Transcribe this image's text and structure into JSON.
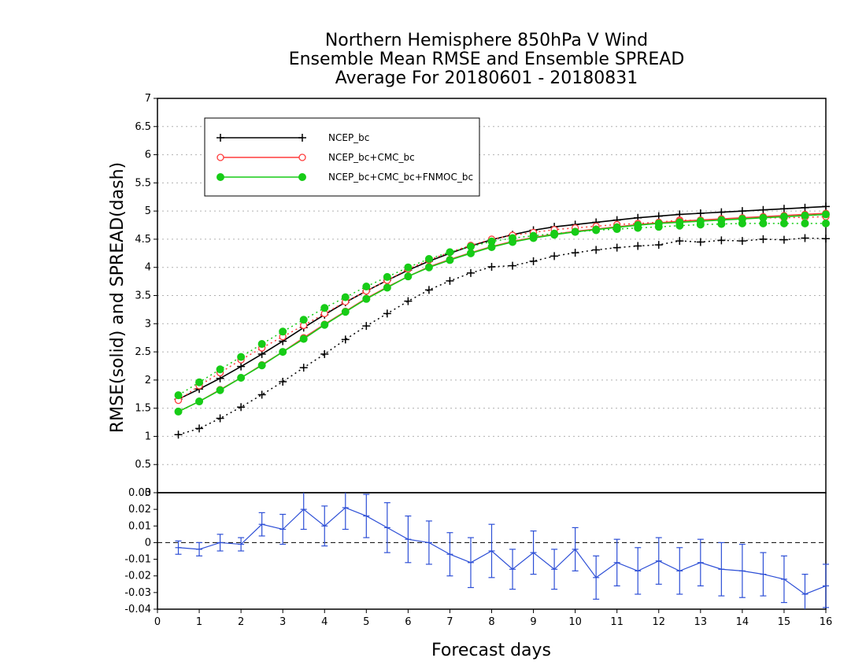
{
  "chart_data": [
    {
      "type": "line",
      "title": [
        "Northern Hemisphere 850hPa V Wind",
        "Ensemble Mean RMSE and Ensemble SPREAD",
        "Average For 20180601 - 20180831"
      ],
      "xlabel": "Forecast days",
      "ylabel": "RMSE(solid) and SPREAD(dash)",
      "xlim": [
        0,
        16
      ],
      "ylim": [
        0,
        7
      ],
      "x_ticks": [
        "0",
        "1",
        "2",
        "3",
        "4",
        "5",
        "6",
        "7",
        "8",
        "9",
        "10",
        "11",
        "12",
        "13",
        "14",
        "15",
        "16"
      ],
      "y_ticks": [
        "0",
        "0.5",
        "1",
        "1.5",
        "2",
        "2.5",
        "3",
        "3.5",
        "4",
        "4.5",
        "5",
        "5.5",
        "6",
        "6.5",
        "7"
      ],
      "grid": true,
      "legend_position": "top-left",
      "x": [
        0.5,
        1,
        1.5,
        2,
        2.5,
        3,
        3.5,
        4,
        4.5,
        5,
        5.5,
        6,
        6.5,
        7,
        7.5,
        8,
        8.5,
        9,
        9.5,
        10,
        10.5,
        11,
        11.5,
        12,
        12.5,
        13,
        13.5,
        14,
        14.5,
        15,
        15.5,
        16
      ],
      "series": [
        {
          "name": "NCEP_bc",
          "color": "#000000",
          "marker": "plus",
          "rmse": [
            1.66,
            1.84,
            2.03,
            2.24,
            2.46,
            2.69,
            2.93,
            3.16,
            3.38,
            3.58,
            3.77,
            3.95,
            4.11,
            4.25,
            4.38,
            4.49,
            4.58,
            4.66,
            4.72,
            4.76,
            4.8,
            4.84,
            4.88,
            4.91,
            4.94,
            4.96,
            4.98,
            5.0,
            5.02,
            5.04,
            5.06,
            5.08
          ],
          "spread": [
            1.03,
            1.14,
            1.32,
            1.52,
            1.74,
            1.97,
            2.22,
            2.46,
            2.72,
            2.96,
            3.18,
            3.4,
            3.6,
            3.76,
            3.9,
            4.01,
            4.03,
            4.11,
            4.2,
            4.26,
            4.31,
            4.35,
            4.38,
            4.4,
            4.47,
            4.45,
            4.48,
            4.47,
            4.5,
            4.49,
            4.52,
            4.51
          ]
        },
        {
          "name": "NCEP_bc+CMC_bc",
          "color": "#ff3c3c",
          "marker": "open-circle",
          "rmse": [
            1.44,
            1.62,
            1.83,
            2.04,
            2.27,
            2.5,
            2.75,
            2.99,
            3.22,
            3.45,
            3.65,
            3.84,
            4.01,
            4.14,
            4.26,
            4.37,
            4.46,
            4.53,
            4.59,
            4.64,
            4.68,
            4.72,
            4.76,
            4.79,
            4.82,
            4.84,
            4.86,
            4.88,
            4.9,
            4.92,
            4.94,
            4.96
          ],
          "spread": [
            1.64,
            1.9,
            2.13,
            2.36,
            2.57,
            2.77,
            2.97,
            3.18,
            3.39,
            3.58,
            3.77,
            3.97,
            4.13,
            4.27,
            4.39,
            4.5,
            4.57,
            4.62,
            4.67,
            4.7,
            4.73,
            4.76,
            4.78,
            4.8,
            4.84,
            4.83,
            4.86,
            4.87,
            4.88,
            4.88,
            4.89,
            4.9
          ]
        },
        {
          "name": "NCEP_bc+CMC_bc+FNMOC_bc",
          "color": "#17cc17",
          "marker": "filled-circle",
          "rmse": [
            1.44,
            1.62,
            1.82,
            2.04,
            2.26,
            2.5,
            2.73,
            2.98,
            3.21,
            3.44,
            3.64,
            3.84,
            4.0,
            4.13,
            4.25,
            4.36,
            4.45,
            4.52,
            4.58,
            4.63,
            4.67,
            4.71,
            4.75,
            4.78,
            4.8,
            4.82,
            4.84,
            4.86,
            4.88,
            4.9,
            4.92,
            4.94
          ],
          "spread": [
            1.73,
            1.96,
            2.19,
            2.41,
            2.64,
            2.86,
            3.07,
            3.28,
            3.47,
            3.66,
            3.83,
            4.0,
            4.15,
            4.27,
            4.37,
            4.46,
            4.52,
            4.56,
            4.6,
            4.63,
            4.66,
            4.68,
            4.7,
            4.72,
            4.74,
            4.76,
            4.77,
            4.78,
            4.78,
            4.78,
            4.78,
            4.78
          ]
        }
      ]
    },
    {
      "type": "line",
      "xlabel": "Forecast days",
      "ylim": [
        -0.04,
        0.03
      ],
      "y_ticks": [
        "0.03",
        "0.02",
        "0.01",
        "0",
        "-0.01",
        "-0.02",
        "-0.03",
        "-0.04"
      ],
      "color": "#2d4fd6",
      "error_bars": true,
      "x": [
        0.5,
        1,
        1.5,
        2,
        2.5,
        3,
        3.5,
        4,
        4.5,
        5,
        5.5,
        6,
        6.5,
        7,
        7.5,
        8,
        8.5,
        9,
        9.5,
        10,
        10.5,
        11,
        11.5,
        12,
        12.5,
        13,
        13.5,
        14,
        14.5,
        15,
        15.5,
        16
      ],
      "values": [
        -0.003,
        -0.004,
        0.0,
        -0.001,
        0.011,
        0.008,
        0.02,
        0.01,
        0.021,
        0.016,
        0.009,
        0.002,
        0.0,
        -0.007,
        -0.012,
        -0.005,
        -0.016,
        -0.006,
        -0.016,
        -0.004,
        -0.021,
        -0.012,
        -0.017,
        -0.011,
        -0.017,
        -0.012,
        -0.016,
        -0.017,
        -0.019,
        -0.022,
        -0.031,
        -0.026
      ],
      "errors": [
        0.004,
        0.004,
        0.005,
        0.004,
        0.007,
        0.009,
        0.012,
        0.012,
        0.013,
        0.013,
        0.015,
        0.014,
        0.013,
        0.013,
        0.015,
        0.016,
        0.012,
        0.013,
        0.012,
        0.013,
        0.013,
        0.014,
        0.014,
        0.014,
        0.014,
        0.014,
        0.016,
        0.016,
        0.013,
        0.014,
        0.012,
        0.013
      ]
    }
  ]
}
